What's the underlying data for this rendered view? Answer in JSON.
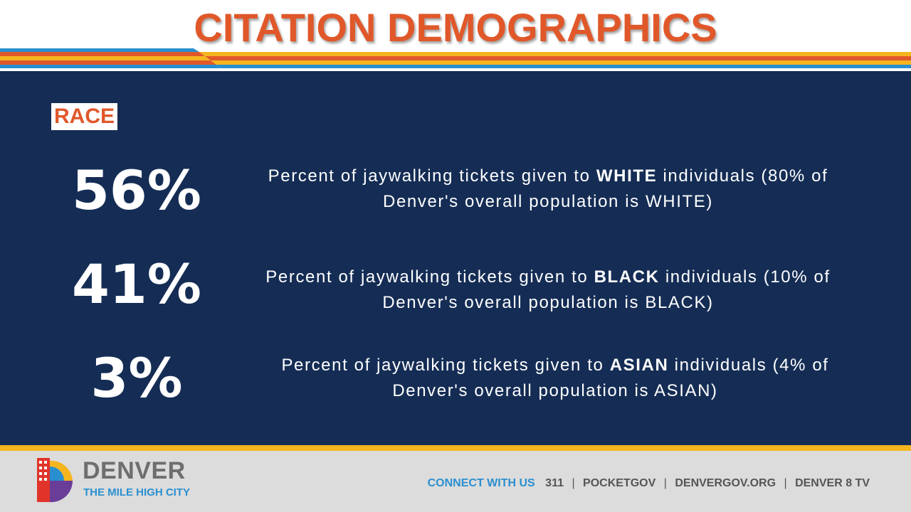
{
  "title": "CITATION DEMOGRAPHICS",
  "section_label": "RACE",
  "stats": [
    {
      "percent": "56%",
      "pre": "Percent of jaywalking tickets given to ",
      "group": "WHITE",
      "mid": " individuals (80% of",
      "line2": "Denver's overall population is WHITE)"
    },
    {
      "percent": "41%",
      "pre": "Percent of jaywalking tickets given to ",
      "group": "BLACK",
      "mid": " individuals (10% of",
      "line2": "Denver's overall population is BLACK)"
    },
    {
      "percent": "3%",
      "pre": "Percent of jaywalking tickets given to ",
      "group": "ASIAN",
      "mid": " individuals (4% of",
      "line2": "Denver's overall population is ASIAN)"
    }
  ],
  "footer": {
    "brand": "DENVER",
    "tagline": "THE MILE HIGH CITY",
    "connect_label": "CONNECT WITH US",
    "links": [
      "311",
      "POCKETGOV",
      "DENVERGOV.ORG",
      "DENVER 8 TV"
    ],
    "separator": "|"
  },
  "colors": {
    "title_orange": "#e0582a",
    "navy": "#152d55",
    "yellow": "#f5b51f",
    "blue": "#2a8fd0",
    "footer_gray": "#dcdcdc"
  },
  "icons": [
    "denver-logo-icon"
  ]
}
